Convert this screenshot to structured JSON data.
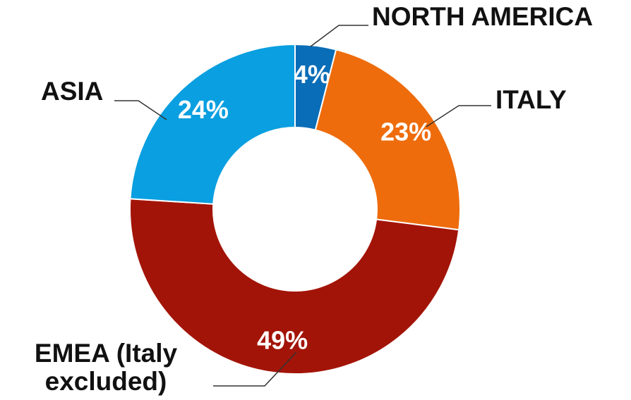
{
  "chart_data": {
    "type": "pie",
    "categories": [
      "NORTH AMERICA",
      "ITALY",
      "EMEA (Italy excluded)",
      "ASIA"
    ],
    "values": [
      4,
      23,
      49,
      24
    ],
    "value_labels": [
      "4%",
      "23%",
      "49%",
      "24%"
    ],
    "colors": [
      "#0a6db7",
      "#ee6c0c",
      "#a31408",
      "#0a9fe0"
    ]
  }
}
